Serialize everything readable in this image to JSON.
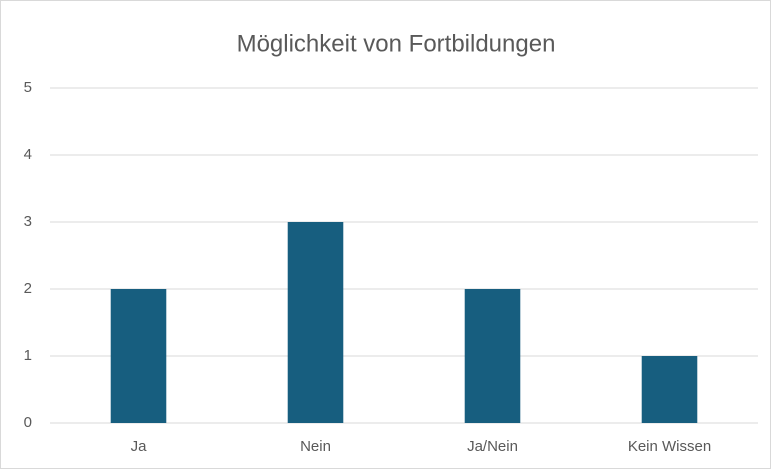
{
  "chart_data": {
    "type": "bar",
    "title": "Möglichkeit von Fortbildungen",
    "categories": [
      "Ja",
      "Nein",
      "Ja/Nein",
      "Kein Wissen"
    ],
    "values": [
      2,
      3,
      2,
      1
    ],
    "color": "#175e7f",
    "ylim": [
      0,
      5
    ],
    "yticks": [
      0,
      1,
      2,
      3,
      4,
      5
    ],
    "grid": true
  }
}
